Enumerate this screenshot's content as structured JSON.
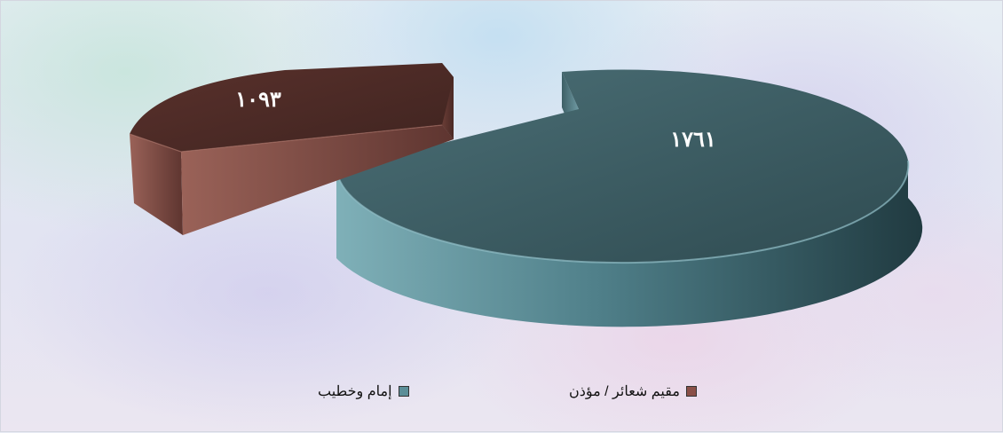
{
  "chart_data": {
    "type": "pie",
    "slices": [
      {
        "label": "إمام وخطيب",
        "value": 1761,
        "display": "١٧٦١",
        "color": "#5b8e98"
      },
      {
        "label": "مقيم شعائر / مؤذن",
        "value": 1093,
        "display": "١٠٩٣",
        "color": "#7b4a42"
      }
    ],
    "legend_position": "bottom",
    "style": "3d-exploded"
  },
  "legend": {
    "item1": "مقيم شعائر / مؤذن",
    "item2": "إمام وخطيب"
  }
}
